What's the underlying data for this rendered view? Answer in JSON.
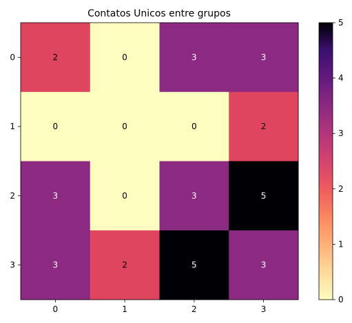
{
  "chart_data": {
    "type": "heatmap",
    "title": "Contatos Unicos entre grupos",
    "xlabel": "",
    "ylabel": "",
    "x_categories": [
      "0",
      "1",
      "2",
      "3"
    ],
    "y_categories": [
      "0",
      "1",
      "2",
      "3"
    ],
    "values": [
      [
        2,
        0,
        3,
        3
      ],
      [
        0,
        0,
        0,
        2
      ],
      [
        3,
        0,
        3,
        5
      ],
      [
        3,
        2,
        5,
        3
      ]
    ],
    "colormap": "magma_r",
    "vmin": 0,
    "vmax": 5,
    "colorbar_ticks": [
      "0",
      "1",
      "2",
      "3",
      "4",
      "5"
    ],
    "colors": {
      "0": "#fcfdbf",
      "2": "#e0455f",
      "3": "#8c2981",
      "5": "#000004"
    }
  }
}
